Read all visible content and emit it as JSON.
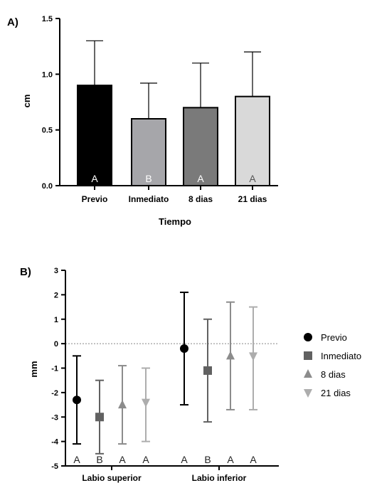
{
  "chart_data": [
    {
      "panel": "A)",
      "type": "bar",
      "xlabel": "Tiempo",
      "ylabel": "cm",
      "ylim": [
        0,
        1.5
      ],
      "yticks": [
        "0.0",
        "0.5",
        "1.0",
        "1.5"
      ],
      "categories": [
        "Previo",
        "Inmediato",
        "8 dias",
        "21 dias"
      ],
      "values": [
        0.9,
        0.6,
        0.7,
        0.8
      ],
      "error_upper": [
        1.3,
        0.92,
        1.1,
        1.2
      ],
      "letters": [
        "A",
        "B",
        "A",
        "A"
      ],
      "colors": [
        "#000000",
        "#a6a6aa",
        "#7a7a7a",
        "#d9d9d9"
      ],
      "letter_colors": [
        "#ffffff",
        "#ffffff",
        "#ffffff",
        "#555555"
      ],
      "grid": false
    },
    {
      "panel": "B)",
      "type": "scatter",
      "ylabel": "mm",
      "ylim": [
        -5,
        3
      ],
      "yticks": [
        "-5",
        "-4",
        "-3",
        "-2",
        "-1",
        "0",
        "1",
        "2",
        "3"
      ],
      "groups": [
        "Labio superior",
        "Labio inferior"
      ],
      "reference_line": 0,
      "legend_position": "right",
      "series": [
        {
          "name": "Previo",
          "marker": "circle",
          "color": "#000000",
          "values": [
            -2.3,
            -0.2
          ],
          "lower": [
            -4.1,
            -2.5
          ],
          "upper": [
            -0.5,
            2.1
          ],
          "letters": [
            "A",
            "A"
          ]
        },
        {
          "name": "Inmediato",
          "marker": "square",
          "color": "#616161",
          "values": [
            -3.0,
            -1.1
          ],
          "lower": [
            -4.5,
            -3.2
          ],
          "upper": [
            -1.5,
            1.0
          ],
          "letters": [
            "B",
            "B"
          ]
        },
        {
          "name": "8 dias",
          "marker": "triangle-up",
          "color": "#8c8c8c",
          "values": [
            -2.5,
            -0.5
          ],
          "lower": [
            -4.1,
            -2.7
          ],
          "upper": [
            -0.9,
            1.7
          ],
          "letters": [
            "A",
            "A"
          ]
        },
        {
          "name": "21 dias",
          "marker": "triangle-down",
          "color": "#adadad",
          "values": [
            -2.4,
            -0.5
          ],
          "lower": [
            -4.0,
            -2.7
          ],
          "upper": [
            -1.0,
            1.5
          ],
          "letters": [
            "A",
            "A"
          ]
        }
      ],
      "grid": false
    }
  ]
}
